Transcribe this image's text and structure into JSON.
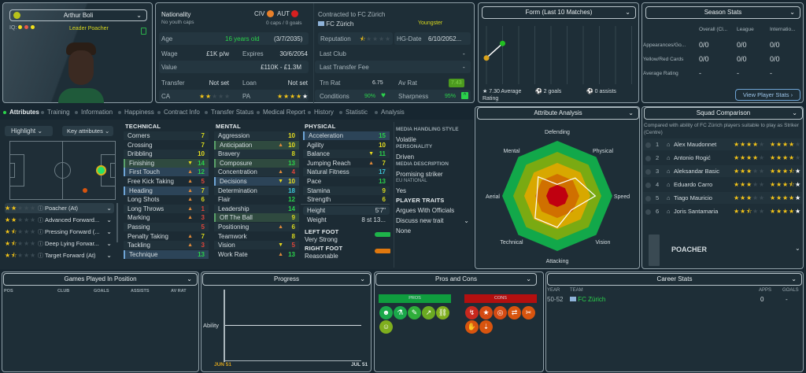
{
  "player": {
    "name": "Arthur Boli",
    "role_tag": "Leader Poacher",
    "iq_label": "IQ:",
    "iq_dots": [
      "#f2e01c",
      "#e85a4a",
      "#f2e01c"
    ]
  },
  "nationality": {
    "label": "Nationality",
    "youth_caps": "No youth caps",
    "nation1": "CIV",
    "nation2": "AUT",
    "caps": "0 caps / 0 goals"
  },
  "info": {
    "age_label": "Age",
    "age": "16 years old",
    "dob": "(3/7/2035)",
    "wage_label": "Wage",
    "wage": "£1K p/w",
    "expires_label": "Expires",
    "expires": "30/6/2054",
    "value_label": "Value",
    "value": "£110K - £1.3M",
    "transfer_label": "Transfer",
    "transfer": "Not set",
    "loan_label": "Loan",
    "loan": "Not set",
    "ca_label": "CA",
    "ca_stars": 2,
    "pa_label": "PA",
    "pa_stars": 4,
    "pa_range": 1
  },
  "contract": {
    "title": "Contracted to FC Zürich",
    "club": "FC Zürich",
    "status": "Youngster",
    "reputation_label": "Reputation",
    "reputation_stars": 0.5,
    "hg_label": "HG-Date",
    "hg_date": "6/10/2052...",
    "last_club_label": "Last Club",
    "last_club": "-",
    "last_fee_label": "Last Transfer Fee",
    "last_fee": "-",
    "trn_rat_label": "Trn Rat",
    "trn_rat": "6.75",
    "av_rat_label": "Av Rat",
    "av_rat": "7.43",
    "conditions_label": "Conditions",
    "conditions": "90%",
    "sharpness_label": "Sharpness",
    "sharpness": "95%"
  },
  "form": {
    "title": "Form (Last 10 Matches)",
    "ratings": [
      6.8,
      7.8
    ],
    "avg": "7.30 Average Rating",
    "goals": "2 goals",
    "assists": "0 assists"
  },
  "season": {
    "title": "Season Stats",
    "cols": [
      "Overall (Cl...",
      "League",
      "Internatio..."
    ],
    "rows": [
      {
        "label": "Appearances/Go...",
        "vals": [
          "0/0",
          "0/0",
          "0/0"
        ]
      },
      {
        "label": "Yellow/Red Cards",
        "vals": [
          "0/0",
          "0/0",
          "0/0"
        ]
      },
      {
        "label": "Average Rating",
        "vals": [
          "-",
          "-",
          "-"
        ]
      }
    ],
    "button": "View Player Stats"
  },
  "tabs": [
    "Attributes",
    "Training",
    "Information",
    "Happiness",
    "Contract Info",
    "Transfer Status",
    "Medical Report",
    "History",
    "Statistic",
    "Analysis"
  ],
  "filters": {
    "highlight": "Highlight",
    "key": "Key attributes"
  },
  "roles": [
    {
      "name": "Poacher (At)",
      "stars": 2
    },
    {
      "name": "Advanced Forward...",
      "stars": 2
    },
    {
      "name": "Pressing Forward (...",
      "stars": 1.5
    },
    {
      "name": "Deep Lying Forwar...",
      "stars": 1.5
    },
    {
      "name": "Target Forward (At)",
      "stars": 1.5
    }
  ],
  "technical": {
    "title": "TECHNICAL",
    "items": [
      {
        "n": "Corners",
        "v": 7
      },
      {
        "n": "Crossing",
        "v": 7
      },
      {
        "n": "Dribbling",
        "v": 10
      },
      {
        "n": "Finishing",
        "v": 14,
        "k": "g",
        "a": "down"
      },
      {
        "n": "First Touch",
        "v": 12,
        "k": "b",
        "a": "up"
      },
      {
        "n": "Free Kick Taking",
        "v": 5,
        "a": "up"
      },
      {
        "n": "Heading",
        "v": 7,
        "k": "b",
        "a": "up"
      },
      {
        "n": "Long Shots",
        "v": 6,
        "a": "up"
      },
      {
        "n": "Long Throws",
        "v": 1,
        "a": "up"
      },
      {
        "n": "Marking",
        "v": 3,
        "a": "up"
      },
      {
        "n": "Passing",
        "v": 5
      },
      {
        "n": "Penalty Taking",
        "v": 7,
        "a": "up"
      },
      {
        "n": "Tackling",
        "v": 3,
        "a": "up"
      },
      {
        "n": "Technique",
        "v": 13,
        "k": "b"
      }
    ]
  },
  "mental": {
    "title": "MENTAL",
    "items": [
      {
        "n": "Aggression",
        "v": 10
      },
      {
        "n": "Anticipation",
        "v": 10,
        "k": "g",
        "a": "up"
      },
      {
        "n": "Bravery",
        "v": 8
      },
      {
        "n": "Composure",
        "v": 13,
        "k": "g"
      },
      {
        "n": "Concentration",
        "v": 4,
        "a": "up"
      },
      {
        "n": "Decisions",
        "v": 10,
        "k": "b",
        "a": "down"
      },
      {
        "n": "Determination",
        "v": 18
      },
      {
        "n": "Flair",
        "v": 12
      },
      {
        "n": "Leadership",
        "v": 14
      },
      {
        "n": "Off The Ball",
        "v": 9,
        "k": "g"
      },
      {
        "n": "Positioning",
        "v": 6,
        "a": "up"
      },
      {
        "n": "Teamwork",
        "v": 8
      },
      {
        "n": "Vision",
        "v": 5,
        "a": "down"
      },
      {
        "n": "Work Rate",
        "v": 13,
        "a": "up"
      }
    ]
  },
  "physical": {
    "title": "PHYSICAL",
    "items": [
      {
        "n": "Acceleration",
        "v": 15,
        "k": "b"
      },
      {
        "n": "Agility",
        "v": 10
      },
      {
        "n": "Balance",
        "v": 11,
        "a": "down"
      },
      {
        "n": "Jumping Reach",
        "v": 7,
        "a": "up"
      },
      {
        "n": "Natural Fitness",
        "v": 17
      },
      {
        "n": "Pace",
        "v": 13
      },
      {
        "n": "Stamina",
        "v": 9
      },
      {
        "n": "Strength",
        "v": 6
      }
    ],
    "height_label": "Height",
    "height": "5'7\"",
    "weight_label": "Weight",
    "weight": "8 st 13...",
    "left_foot_label": "LEFT FOOT",
    "left_foot": "Very Strong",
    "right_foot_label": "RIGHT FOOT",
    "right_foot": "Reasonable"
  },
  "media": {
    "style_label": "MEDIA HANDLING STYLE",
    "style": "Volatile",
    "personality_label": "PERSONALITY",
    "personality": "Driven",
    "desc_label": "MEDIA DESCRIPTION",
    "desc": "Promising striker",
    "eu_label": "EU NATIONAL",
    "eu": "Yes",
    "traits_label": "PLAYER TRAITS",
    "trait": "Argues With Officials",
    "discuss": "Discuss new trait",
    "none": "None"
  },
  "attribute_analysis": {
    "title": "Attribute Analysis",
    "axes": [
      "Defending",
      "Physical",
      "Speed",
      "Vision",
      "Attacking",
      "Technical",
      "Aerial",
      "Mental"
    ],
    "values": [
      0.21,
      0.46,
      0.69,
      0.36,
      0.57,
      0.57,
      0.37,
      0.49
    ]
  },
  "squad": {
    "title": "Squad Comparison",
    "note": "Compared with ability of FC Zürich players suitable to play as Striker (Centre)",
    "players": [
      {
        "r": "1",
        "n": "Alex Maudonnet",
        "c": 4,
        "p": 4,
        "pr": 0
      },
      {
        "r": "2",
        "n": "Antonio Rogić",
        "c": 4,
        "p": 4,
        "pr": 0
      },
      {
        "r": "3",
        "n": "Aleksandar Basic",
        "c": 3,
        "p": 3.5,
        "pr": 1
      },
      {
        "r": "4",
        "n": "Eduardo Carro",
        "c": 3,
        "p": 3.5,
        "pr": 1
      },
      {
        "r": "5",
        "n": "Tiago Mauricio",
        "c": 3,
        "p": 4,
        "pr": 1
      },
      {
        "r": "6",
        "n": "Joris Santamaria",
        "c": 2.5,
        "p": 4,
        "pr": 1
      }
    ],
    "role": "POACHER"
  },
  "games": {
    "title": "Games Played In Position",
    "cols": [
      "POS",
      "CLUB",
      "GOALS",
      "ASSISTS",
      "AV RAT"
    ]
  },
  "progress": {
    "title": "Progress",
    "ylabel": "Ability",
    "x_start": "JUN 51",
    "x_end": "JUL 51"
  },
  "pros_cons": {
    "title": "Pros and Cons",
    "pros_label": "PROS",
    "cons_label": "CONS",
    "pros": [
      {
        "i": "☻",
        "c": "#1aa84a"
      },
      {
        "i": "⚗",
        "c": "#1aa84a"
      },
      {
        "i": "✎",
        "c": "#2fae3a"
      },
      {
        "i": "↗",
        "c": "#6aaa22"
      },
      {
        "i": "⛓",
        "c": "#7fae1e"
      },
      {
        "i": "☺",
        "c": "#7fae1e"
      }
    ],
    "cons": [
      {
        "i": "↯",
        "c": "#c8281e"
      },
      {
        "i": "★",
        "c": "#d44a12"
      },
      {
        "i": "◎",
        "c": "#d44a12"
      },
      {
        "i": "⇄",
        "c": "#d8540e"
      },
      {
        "i": "✂",
        "c": "#d8540e"
      },
      {
        "i": "✋",
        "c": "#d8540e"
      },
      {
        "i": "⇣",
        "c": "#d8540e"
      }
    ]
  },
  "career": {
    "title": "Career Stats",
    "cols": [
      "YEAR",
      "TEAM",
      "APPS",
      "GOALS"
    ],
    "rows": [
      {
        "year": "50-52",
        "team": "FC Zürich",
        "apps": "0",
        "goals": "-"
      }
    ]
  },
  "colors": {
    "accent_green": "#2bd24b",
    "panel": "#1e2e37",
    "pros": "#0f9d3e",
    "cons": "#b30f0f"
  }
}
